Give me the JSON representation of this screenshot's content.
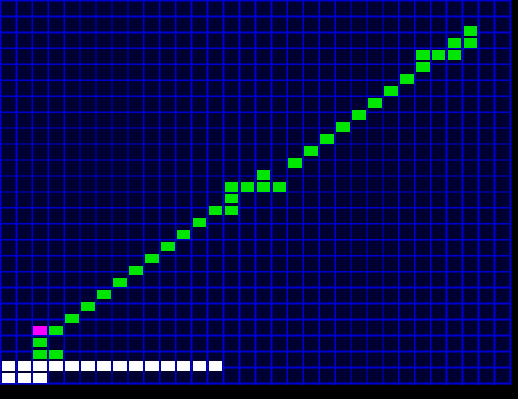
{
  "game": {
    "grid": {
      "columns": 32,
      "rows": 24
    },
    "colors": {
      "background": "#000000",
      "cell_fill": "#000033",
      "grid_line": "#0000d0",
      "path_cell": "#00e600",
      "head_cell": "#ff00ff",
      "progress_cell": "#ffffff"
    },
    "path_cells": [
      [
        29,
        2
      ],
      [
        28,
        3
      ],
      [
        29,
        3
      ],
      [
        26,
        4
      ],
      [
        27,
        4
      ],
      [
        28,
        4
      ],
      [
        26,
        5
      ],
      [
        25,
        6
      ],
      [
        24,
        7
      ],
      [
        23,
        8
      ],
      [
        22,
        9
      ],
      [
        21,
        10
      ],
      [
        20,
        11
      ],
      [
        19,
        12
      ],
      [
        18,
        13
      ],
      [
        16,
        14
      ],
      [
        14,
        15
      ],
      [
        15,
        15
      ],
      [
        16,
        15
      ],
      [
        17,
        15
      ],
      [
        14,
        16
      ],
      [
        13,
        17
      ],
      [
        14,
        17
      ],
      [
        12,
        18
      ],
      [
        11,
        19
      ],
      [
        10,
        20
      ],
      [
        9,
        21
      ],
      [
        8,
        22
      ],
      [
        7,
        23
      ]
    ],
    "path_cells_lower": [
      [
        6,
        24
      ],
      [
        5,
        25
      ],
      [
        4,
        26
      ],
      [
        3,
        27
      ],
      [
        2,
        28
      ],
      [
        3,
        29
      ],
      [
        2,
        29
      ]
    ],
    "head_cell": [
      2,
      27
    ],
    "progress": {
      "row_one_filled": 14,
      "row_two_filled": 3
    }
  }
}
